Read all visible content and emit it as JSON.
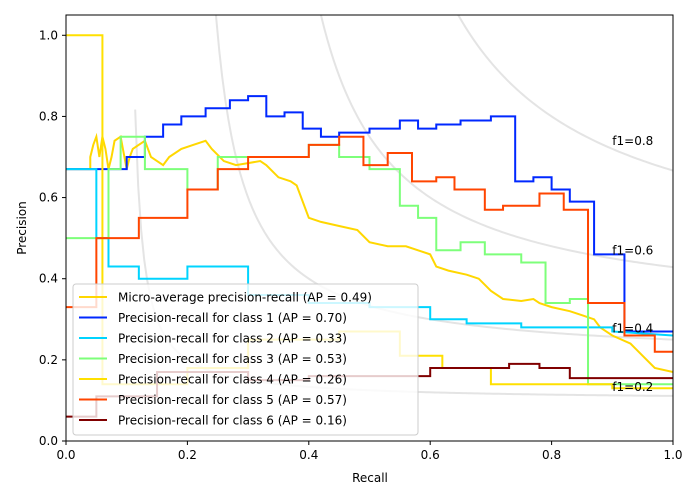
{
  "chart_data": {
    "type": "line",
    "title": "",
    "xlabel": "Recall",
    "ylabel": "Precision",
    "xlim": [
      0.0,
      1.0
    ],
    "ylim": [
      0.0,
      1.05
    ],
    "grid": false,
    "legend_position": "lower-left",
    "xticks": [
      "0.0",
      "0.2",
      "0.4",
      "0.6",
      "0.8",
      "1.0"
    ],
    "yticks": [
      "0.0",
      "0.2",
      "0.4",
      "0.6",
      "0.8",
      "1.0"
    ],
    "iso_f1": [
      {
        "f1": 0.2,
        "label": "f1=0.2"
      },
      {
        "f1": 0.4,
        "label": "f1=0.4"
      },
      {
        "f1": 0.6,
        "label": "f1=0.6"
      },
      {
        "f1": 0.8,
        "label": "f1=0.8"
      }
    ],
    "series": [
      {
        "name": "Micro-average precision-recall (AP = 0.49)",
        "color": "#ffd700",
        "points": [
          [
            0.0,
            0.67
          ],
          [
            0.04,
            0.67
          ],
          [
            0.04,
            0.7
          ],
          [
            0.045,
            0.73
          ],
          [
            0.05,
            0.75
          ],
          [
            0.055,
            0.7
          ],
          [
            0.06,
            0.75
          ],
          [
            0.065,
            0.72
          ],
          [
            0.07,
            0.67
          ],
          [
            0.075,
            0.7
          ],
          [
            0.08,
            0.74
          ],
          [
            0.09,
            0.75
          ],
          [
            0.1,
            0.67
          ],
          [
            0.105,
            0.7
          ],
          [
            0.11,
            0.72
          ],
          [
            0.12,
            0.73
          ],
          [
            0.13,
            0.74
          ],
          [
            0.14,
            0.7
          ],
          [
            0.15,
            0.69
          ],
          [
            0.16,
            0.68
          ],
          [
            0.17,
            0.7
          ],
          [
            0.19,
            0.72
          ],
          [
            0.21,
            0.73
          ],
          [
            0.23,
            0.74
          ],
          [
            0.24,
            0.72
          ],
          [
            0.26,
            0.69
          ],
          [
            0.28,
            0.68
          ],
          [
            0.3,
            0.685
          ],
          [
            0.32,
            0.69
          ],
          [
            0.33,
            0.68
          ],
          [
            0.35,
            0.65
          ],
          [
            0.37,
            0.64
          ],
          [
            0.38,
            0.63
          ],
          [
            0.39,
            0.59
          ],
          [
            0.4,
            0.55
          ],
          [
            0.42,
            0.54
          ],
          [
            0.45,
            0.53
          ],
          [
            0.48,
            0.52
          ],
          [
            0.5,
            0.49
          ],
          [
            0.53,
            0.48
          ],
          [
            0.56,
            0.48
          ],
          [
            0.58,
            0.47
          ],
          [
            0.6,
            0.46
          ],
          [
            0.61,
            0.43
          ],
          [
            0.63,
            0.42
          ],
          [
            0.66,
            0.41
          ],
          [
            0.68,
            0.4
          ],
          [
            0.7,
            0.37
          ],
          [
            0.72,
            0.35
          ],
          [
            0.75,
            0.345
          ],
          [
            0.77,
            0.35
          ],
          [
            0.78,
            0.34
          ],
          [
            0.8,
            0.33
          ],
          [
            0.83,
            0.32
          ],
          [
            0.85,
            0.31
          ],
          [
            0.87,
            0.3
          ],
          [
            0.88,
            0.28
          ],
          [
            0.9,
            0.26
          ],
          [
            0.93,
            0.24
          ],
          [
            0.95,
            0.21
          ],
          [
            0.97,
            0.18
          ],
          [
            1.0,
            0.17
          ]
        ]
      },
      {
        "name": "Precision-recall for class 1 (AP = 0.70)",
        "color": "#0028ff",
        "points": [
          [
            0.0,
            0.67
          ],
          [
            0.1,
            0.67
          ],
          [
            0.1,
            0.7
          ],
          [
            0.13,
            0.7
          ],
          [
            0.13,
            0.75
          ],
          [
            0.16,
            0.75
          ],
          [
            0.16,
            0.78
          ],
          [
            0.19,
            0.78
          ],
          [
            0.19,
            0.8
          ],
          [
            0.23,
            0.8
          ],
          [
            0.23,
            0.82
          ],
          [
            0.27,
            0.82
          ],
          [
            0.27,
            0.84
          ],
          [
            0.3,
            0.84
          ],
          [
            0.3,
            0.85
          ],
          [
            0.33,
            0.85
          ],
          [
            0.33,
            0.8
          ],
          [
            0.36,
            0.8
          ],
          [
            0.36,
            0.81
          ],
          [
            0.39,
            0.81
          ],
          [
            0.39,
            0.77
          ],
          [
            0.42,
            0.77
          ],
          [
            0.42,
            0.75
          ],
          [
            0.45,
            0.75
          ],
          [
            0.45,
            0.76
          ],
          [
            0.5,
            0.76
          ],
          [
            0.5,
            0.77
          ],
          [
            0.55,
            0.77
          ],
          [
            0.55,
            0.79
          ],
          [
            0.58,
            0.79
          ],
          [
            0.58,
            0.77
          ],
          [
            0.61,
            0.77
          ],
          [
            0.61,
            0.78
          ],
          [
            0.65,
            0.78
          ],
          [
            0.65,
            0.79
          ],
          [
            0.7,
            0.79
          ],
          [
            0.7,
            0.8
          ],
          [
            0.74,
            0.8
          ],
          [
            0.74,
            0.64
          ],
          [
            0.77,
            0.64
          ],
          [
            0.77,
            0.65
          ],
          [
            0.8,
            0.65
          ],
          [
            0.8,
            0.62
          ],
          [
            0.83,
            0.62
          ],
          [
            0.83,
            0.59
          ],
          [
            0.87,
            0.59
          ],
          [
            0.87,
            0.46
          ],
          [
            0.92,
            0.46
          ],
          [
            0.92,
            0.27
          ],
          [
            1.0,
            0.27
          ]
        ]
      },
      {
        "name": "Precision-recall for class 2 (AP = 0.33)",
        "color": "#00d4ff",
        "points": [
          [
            0.0,
            0.67
          ],
          [
            0.05,
            0.67
          ],
          [
            0.05,
            0.5
          ],
          [
            0.07,
            0.5
          ],
          [
            0.07,
            0.43
          ],
          [
            0.12,
            0.43
          ],
          [
            0.12,
            0.4
          ],
          [
            0.2,
            0.4
          ],
          [
            0.2,
            0.43
          ],
          [
            0.3,
            0.43
          ],
          [
            0.3,
            0.36
          ],
          [
            0.4,
            0.36
          ],
          [
            0.4,
            0.34
          ],
          [
            0.5,
            0.34
          ],
          [
            0.5,
            0.33
          ],
          [
            0.6,
            0.33
          ],
          [
            0.6,
            0.3
          ],
          [
            0.66,
            0.3
          ],
          [
            0.66,
            0.29
          ],
          [
            0.75,
            0.29
          ],
          [
            0.75,
            0.28
          ],
          [
            0.9,
            0.28
          ],
          [
            0.9,
            0.27
          ],
          [
            1.0,
            0.26
          ]
        ]
      },
      {
        "name": "Precision-recall for class 3 (AP = 0.53)",
        "color": "#7dff7a",
        "points": [
          [
            0.0,
            0.5
          ],
          [
            0.07,
            0.5
          ],
          [
            0.07,
            0.67
          ],
          [
            0.09,
            0.67
          ],
          [
            0.09,
            0.75
          ],
          [
            0.13,
            0.75
          ],
          [
            0.13,
            0.67
          ],
          [
            0.2,
            0.67
          ],
          [
            0.2,
            0.62
          ],
          [
            0.25,
            0.62
          ],
          [
            0.25,
            0.7
          ],
          [
            0.4,
            0.7
          ],
          [
            0.4,
            0.73
          ],
          [
            0.45,
            0.73
          ],
          [
            0.45,
            0.7
          ],
          [
            0.5,
            0.7
          ],
          [
            0.5,
            0.67
          ],
          [
            0.55,
            0.67
          ],
          [
            0.55,
            0.58
          ],
          [
            0.58,
            0.58
          ],
          [
            0.58,
            0.55
          ],
          [
            0.61,
            0.55
          ],
          [
            0.61,
            0.47
          ],
          [
            0.65,
            0.47
          ],
          [
            0.65,
            0.49
          ],
          [
            0.69,
            0.49
          ],
          [
            0.69,
            0.46
          ],
          [
            0.75,
            0.46
          ],
          [
            0.75,
            0.44
          ],
          [
            0.79,
            0.44
          ],
          [
            0.79,
            0.34
          ],
          [
            0.83,
            0.34
          ],
          [
            0.83,
            0.35
          ],
          [
            0.86,
            0.35
          ],
          [
            0.86,
            0.14
          ],
          [
            1.0,
            0.14
          ]
        ]
      },
      {
        "name": "Precision-recall for class 4 (AP = 0.26)",
        "color": "#ffe000",
        "points": [
          [
            0.0,
            1.0
          ],
          [
            0.06,
            1.0
          ],
          [
            0.06,
            0.14
          ],
          [
            0.2,
            0.14
          ],
          [
            0.2,
            0.18
          ],
          [
            0.3,
            0.18
          ],
          [
            0.3,
            0.25
          ],
          [
            0.45,
            0.25
          ],
          [
            0.45,
            0.27
          ],
          [
            0.55,
            0.27
          ],
          [
            0.55,
            0.21
          ],
          [
            0.62,
            0.21
          ],
          [
            0.62,
            0.18
          ],
          [
            0.7,
            0.18
          ],
          [
            0.7,
            0.14
          ],
          [
            0.9,
            0.14
          ],
          [
            0.9,
            0.13
          ],
          [
            1.0,
            0.13
          ]
        ]
      },
      {
        "name": "Precision-recall for class 5 (AP = 0.57)",
        "color": "#ff4500",
        "points": [
          [
            0.0,
            0.33
          ],
          [
            0.05,
            0.33
          ],
          [
            0.05,
            0.5
          ],
          [
            0.12,
            0.5
          ],
          [
            0.12,
            0.55
          ],
          [
            0.2,
            0.55
          ],
          [
            0.2,
            0.62
          ],
          [
            0.25,
            0.62
          ],
          [
            0.25,
            0.67
          ],
          [
            0.3,
            0.67
          ],
          [
            0.3,
            0.7
          ],
          [
            0.4,
            0.7
          ],
          [
            0.4,
            0.73
          ],
          [
            0.45,
            0.73
          ],
          [
            0.45,
            0.75
          ],
          [
            0.49,
            0.75
          ],
          [
            0.49,
            0.68
          ],
          [
            0.53,
            0.68
          ],
          [
            0.53,
            0.71
          ],
          [
            0.57,
            0.71
          ],
          [
            0.57,
            0.64
          ],
          [
            0.61,
            0.64
          ],
          [
            0.61,
            0.65
          ],
          [
            0.64,
            0.65
          ],
          [
            0.64,
            0.62
          ],
          [
            0.69,
            0.62
          ],
          [
            0.69,
            0.57
          ],
          [
            0.72,
            0.57
          ],
          [
            0.72,
            0.58
          ],
          [
            0.78,
            0.58
          ],
          [
            0.78,
            0.61
          ],
          [
            0.82,
            0.61
          ],
          [
            0.82,
            0.57
          ],
          [
            0.86,
            0.57
          ],
          [
            0.86,
            0.34
          ],
          [
            0.92,
            0.34
          ],
          [
            0.92,
            0.26
          ],
          [
            0.97,
            0.26
          ],
          [
            0.97,
            0.22
          ],
          [
            1.0,
            0.22
          ]
        ]
      },
      {
        "name": "Precision-recall for class 6 (AP = 0.16)",
        "color": "#800000",
        "points": [
          [
            0.0,
            0.06
          ],
          [
            0.05,
            0.06
          ],
          [
            0.05,
            0.11
          ],
          [
            0.15,
            0.11
          ],
          [
            0.15,
            0.17
          ],
          [
            0.3,
            0.17
          ],
          [
            0.3,
            0.15
          ],
          [
            0.4,
            0.15
          ],
          [
            0.4,
            0.16
          ],
          [
            0.6,
            0.16
          ],
          [
            0.6,
            0.18
          ],
          [
            0.73,
            0.18
          ],
          [
            0.73,
            0.19
          ],
          [
            0.78,
            0.19
          ],
          [
            0.78,
            0.18
          ],
          [
            0.83,
            0.18
          ],
          [
            0.83,
            0.155
          ],
          [
            1.0,
            0.155
          ]
        ]
      }
    ]
  }
}
